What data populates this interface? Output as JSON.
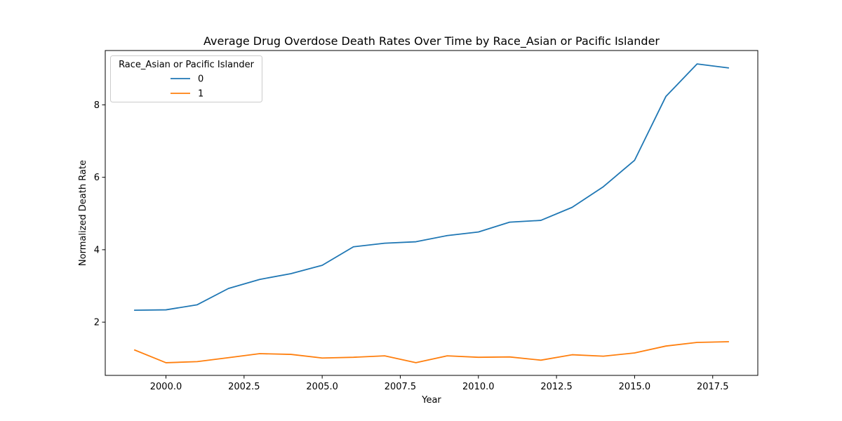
{
  "chart_data": {
    "type": "line",
    "title": "Average Drug Overdose Death Rates Over Time by Race_Asian or Pacific Islander",
    "xlabel": "Year",
    "ylabel": "Normalized Death Rate",
    "x": [
      1999,
      2000,
      2001,
      2002,
      2003,
      2004,
      2005,
      2006,
      2007,
      2008,
      2009,
      2010,
      2011,
      2012,
      2013,
      2014,
      2015,
      2016,
      2017,
      2018
    ],
    "xlim": [
      1999,
      2018
    ],
    "ylim": [
      0.53,
      9.5
    ],
    "x_ticks": [
      2000.0,
      2002.5,
      2005.0,
      2007.5,
      2010.0,
      2012.5,
      2015.0,
      2017.5
    ],
    "x_tick_labels": [
      "2000.0",
      "2002.5",
      "2005.0",
      "2007.5",
      "2010.0",
      "2012.5",
      "2015.0",
      "2017.5"
    ],
    "y_ticks": [
      2,
      4,
      6,
      8
    ],
    "y_tick_labels": [
      "2",
      "4",
      "6",
      "8"
    ],
    "grid": false,
    "legend": {
      "title": "Race_Asian or Pacific Islander",
      "placement": "top-left"
    },
    "series": [
      {
        "name": "0",
        "color": "#1f77b4",
        "values": [
          2.33,
          2.34,
          2.48,
          2.93,
          3.18,
          3.34,
          3.57,
          4.08,
          4.18,
          4.22,
          4.39,
          4.49,
          4.76,
          4.81,
          5.17,
          5.74,
          6.47,
          8.23,
          9.13,
          9.02
        ]
      },
      {
        "name": "1",
        "color": "#ff7f0e",
        "values": [
          1.23,
          0.88,
          0.91,
          1.02,
          1.13,
          1.11,
          1.01,
          1.03,
          1.07,
          0.88,
          1.07,
          1.03,
          1.04,
          0.95,
          1.1,
          1.06,
          1.15,
          1.34,
          1.44,
          1.46
        ]
      }
    ]
  }
}
